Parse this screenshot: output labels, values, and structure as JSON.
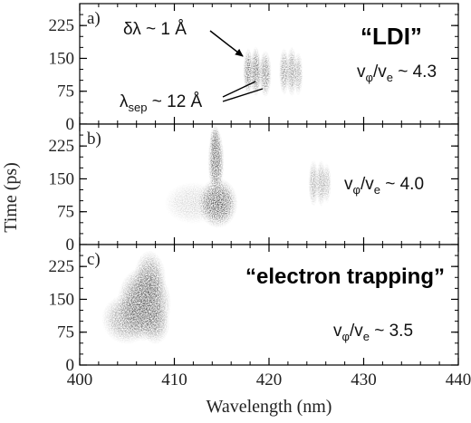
{
  "chart_data": {
    "type": "heatmap",
    "y_axis": {
      "label": "Time (ps)",
      "ylim": [
        0,
        275
      ],
      "ticks": [
        "0",
        "75",
        "150",
        "225"
      ],
      "minor_ticks": [
        "0",
        "25",
        "50",
        "75",
        "100",
        "125",
        "150",
        "175",
        "200",
        "225",
        "250",
        "275"
      ]
    },
    "x_axis": {
      "label": "Wavelength  (nm)",
      "xlim": [
        400,
        440
      ],
      "ticks": [
        "400",
        "410",
        "420",
        "430",
        "440"
      ],
      "minor_ticks": [
        "400",
        "402",
        "404",
        "406",
        "408",
        "410",
        "412",
        "414",
        "416",
        "418",
        "420",
        "422",
        "424",
        "426",
        "428",
        "430",
        "432",
        "434",
        "436",
        "438",
        "440"
      ]
    },
    "panels": [
      {
        "label": "a)",
        "annotations": {
          "title_quote": "“LDI”",
          "ratio": {
            "prefix": "v",
            "sub1": "φ",
            "mid": "/v",
            "sub2": "e",
            "value": " ~ 4.3"
          },
          "linewidth": "δλ ~ 1 Å",
          "separation": {
            "prefix": "λ",
            "sub": "sep",
            "value": " ~ 12 Å"
          }
        },
        "blobs": [
          {
            "x": 417.8,
            "y": 120,
            "sx": 0.28,
            "sy": 28,
            "w": 0.7
          },
          {
            "x": 418.6,
            "y": 120,
            "sx": 0.3,
            "sy": 30,
            "w": 0.75
          },
          {
            "x": 419.6,
            "y": 115,
            "sx": 0.35,
            "sy": 28,
            "w": 0.65
          },
          {
            "x": 421.6,
            "y": 120,
            "sx": 0.28,
            "sy": 28,
            "w": 0.55
          },
          {
            "x": 422.4,
            "y": 120,
            "sx": 0.3,
            "sy": 30,
            "w": 0.55
          },
          {
            "x": 423.1,
            "y": 115,
            "sx": 0.25,
            "sy": 26,
            "w": 0.45
          }
        ]
      },
      {
        "label": "b)",
        "annotations": {
          "ratio": {
            "prefix": "v",
            "sub1": "φ",
            "mid": "/v",
            "sub2": "e",
            "value": " ~ 4.0"
          }
        },
        "blobs": [
          {
            "x": 414.6,
            "y": 95,
            "sx": 1.1,
            "sy": 30,
            "w": 0.9
          },
          {
            "x": 414.4,
            "y": 190,
            "sx": 0.45,
            "sy": 40,
            "w": 0.85
          },
          {
            "x": 414.3,
            "y": 235,
            "sx": 0.3,
            "sy": 20,
            "w": 0.6
          },
          {
            "x": 412.0,
            "y": 95,
            "sx": 1.6,
            "sy": 25,
            "w": 0.22
          },
          {
            "x": 424.7,
            "y": 140,
            "sx": 0.28,
            "sy": 28,
            "w": 0.45
          },
          {
            "x": 425.5,
            "y": 140,
            "sx": 0.28,
            "sy": 28,
            "w": 0.45
          },
          {
            "x": 426.1,
            "y": 140,
            "sx": 0.25,
            "sy": 24,
            "w": 0.35
          }
        ]
      },
      {
        "label": "c)",
        "annotations": {
          "title_quote": "“electron trapping”",
          "ratio": {
            "prefix": "v",
            "sub1": "φ",
            "mid": "/v",
            "sub2": "e",
            "value": " ~ 3.5"
          }
        },
        "blobs": [
          {
            "x": 406.8,
            "y": 140,
            "sx": 1.5,
            "sy": 45,
            "w": 0.95
          },
          {
            "x": 407.4,
            "y": 195,
            "sx": 0.9,
            "sy": 35,
            "w": 0.6
          },
          {
            "x": 405.0,
            "y": 105,
            "sx": 1.4,
            "sy": 30,
            "w": 0.55
          },
          {
            "x": 408.0,
            "y": 95,
            "sx": 0.8,
            "sy": 25,
            "w": 0.45
          }
        ]
      }
    ]
  }
}
